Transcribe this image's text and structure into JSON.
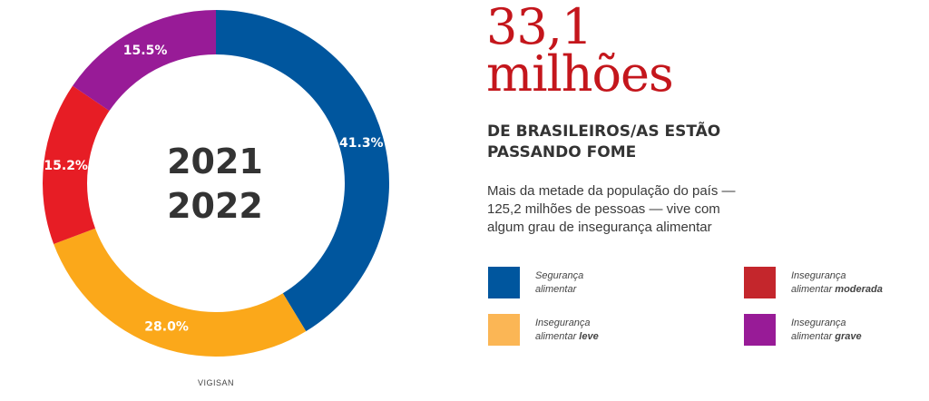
{
  "chart_data": {
    "type": "pie",
    "years": [
      "2021",
      "2022"
    ],
    "categories": [
      "Segurança alimentar",
      "Insegurança alimentar leve",
      "Insegurança alimentar moderada",
      "Insegurança alimentar grave"
    ],
    "values": [
      41.3,
      28.0,
      15.2,
      15.5
    ],
    "value_labels": [
      "41.3%",
      "28.0%",
      "15.2%",
      "15.5%"
    ],
    "colors": [
      "#00569e",
      "#fba81a",
      "#e71d25",
      "#981b97"
    ],
    "source": "VIGISAN"
  },
  "headline": {
    "number_line1": "33,1",
    "number_line2": "milhões",
    "subtitle_line1": "DE BRASILEIROS/AS ESTÃO",
    "subtitle_line2": "PASSANDO FOME"
  },
  "description": {
    "line1": "Mais da metade da população do país —",
    "line2": "125,2 milhões de pessoas — vive com",
    "line3": "algum grau de insegurança alimentar"
  },
  "legend": [
    {
      "line1": "Segurança",
      "line2_plain": "alimentar",
      "line2_bold": "",
      "color": "#00569e"
    },
    {
      "line1": "Insegurança",
      "line2_plain": "alimentar ",
      "line2_bold": "leve",
      "color": "#fbb655"
    },
    {
      "line1": "Insegurança",
      "line2_plain": "alimentar ",
      "line2_bold": "moderada",
      "color": "#c4262c"
    },
    {
      "line1": "Insegurança",
      "line2_plain": "alimentar ",
      "line2_bold": "grave",
      "color": "#981b97"
    }
  ]
}
